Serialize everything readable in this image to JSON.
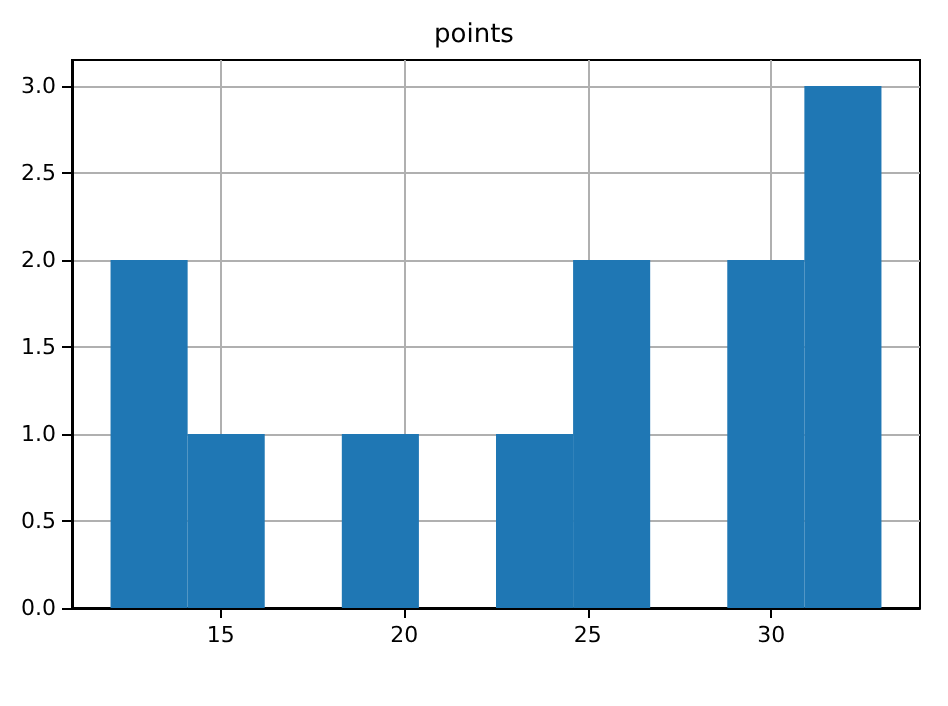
{
  "chart_data": {
    "type": "histogram",
    "title": "points",
    "bins": [
      12,
      14.1,
      16.2,
      18.3,
      20.4,
      22.5,
      24.6,
      26.7,
      28.8,
      30.9,
      33
    ],
    "values": [
      2,
      1,
      0,
      1,
      0,
      1,
      2,
      0,
      2,
      3
    ],
    "color": "#1f77b4",
    "xlim": [
      10.95,
      34.05
    ],
    "xticks": [
      15,
      20,
      25,
      30
    ],
    "ylim": [
      0,
      3.15
    ],
    "yticks": [
      {
        "value": 0,
        "label": "0.0"
      },
      {
        "value": 0.5,
        "label": "0.5"
      },
      {
        "value": 1,
        "label": "1.0"
      },
      {
        "value": 1.5,
        "label": "1.5"
      },
      {
        "value": 2,
        "label": "2.0"
      },
      {
        "value": 2.5,
        "label": "2.5"
      },
      {
        "value": 3,
        "label": "3.0"
      }
    ],
    "grid": true
  }
}
